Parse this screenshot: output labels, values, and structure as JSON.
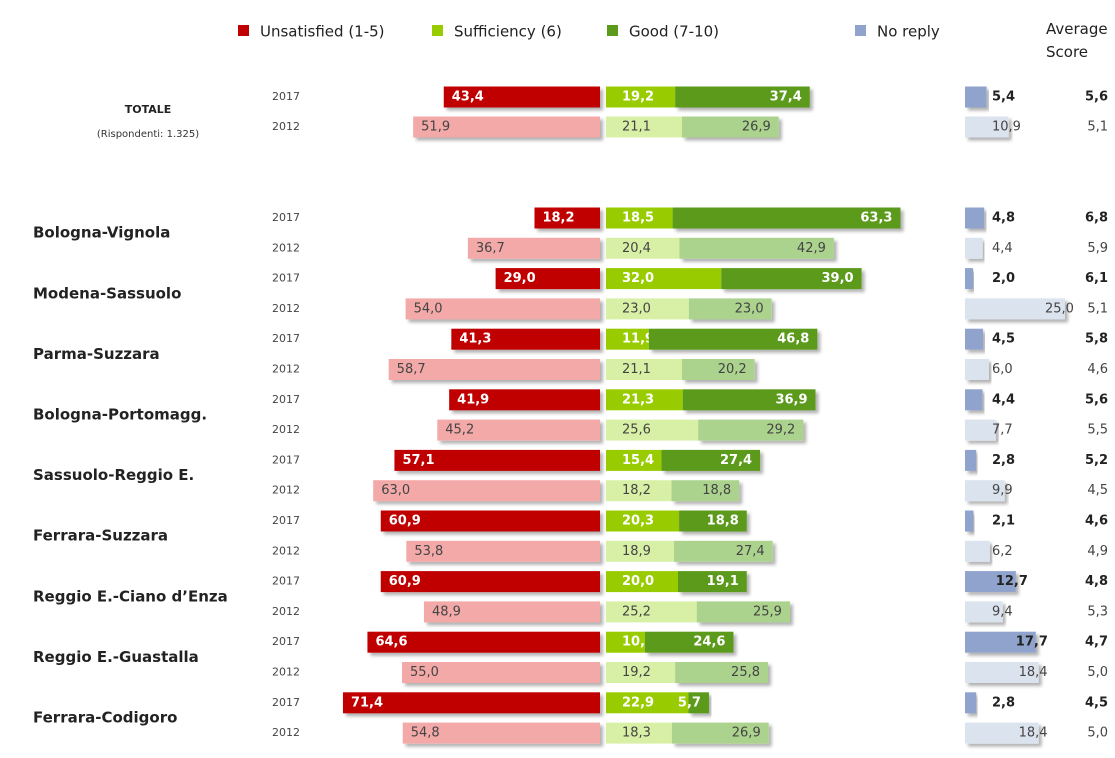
{
  "chart_data": {
    "type": "diverging_bar",
    "groups": [
      {
        "label": "TOTALE",
        "note": "(Rispondenti: 1.325)"
      },
      {
        "label": "Bologna-Vignola"
      },
      {
        "label": "Modena-Sassuolo"
      },
      {
        "label": "Parma-Suzzara"
      },
      {
        "label": "Bologna-Portomagg."
      },
      {
        "label": "Sassuolo-Reggio E."
      },
      {
        "label": "Ferrara-Suzzara"
      },
      {
        "label": "Reggio E.-Ciano d’Enza"
      },
      {
        "label": "Reggio E.-Guastalla"
      },
      {
        "label": "Ferrara-Codigoro"
      }
    ],
    "years": [
      "2017",
      "2012",
      "2017",
      "2012",
      "2017",
      "2012",
      "2017",
      "2012",
      "2017",
      "2012",
      "2017",
      "2012",
      "2017",
      "2012",
      "2017",
      "2012",
      "2017",
      "2012",
      "2017",
      "2012"
    ],
    "series": [
      {
        "name": "Unsatisfied (1-5)",
        "color": "#c00000",
        "light_color": "#f4a9a9",
        "side": "left",
        "values": [
          43.4,
          51.9,
          18.2,
          36.7,
          29.0,
          54.0,
          41.3,
          58.7,
          41.9,
          45.2,
          57.1,
          63.0,
          60.9,
          53.8,
          60.9,
          48.9,
          64.6,
          55.0,
          71.4,
          54.8
        ],
        "value_labels": [
          "43,4",
          "51,9",
          "18,2",
          "36,7",
          "29,0",
          "54,0",
          "41,3",
          "58,7",
          "41,9",
          "45,2",
          "57,1",
          "63,0",
          "60,9",
          "53,8",
          "60,9",
          "48,9",
          "64,6",
          "55,0",
          "71,4",
          "54,8"
        ]
      },
      {
        "name": "Sufficiency (6)",
        "color": "#99cc00",
        "light_color": "#d8f0a6",
        "side": "right",
        "values": [
          19.2,
          21.1,
          18.5,
          20.4,
          32.0,
          23.0,
          11.9,
          21.1,
          21.3,
          25.6,
          15.4,
          18.2,
          20.3,
          18.9,
          20.0,
          25.2,
          10.8,
          19.2,
          22.9,
          18.3
        ],
        "value_labels": [
          "19,2",
          "21,1",
          "18,5",
          "20,4",
          "32,0",
          "23,0",
          "11,9",
          "21,1",
          "21,3",
          "25,6",
          "15,4",
          "18,2",
          "20,3",
          "18,9",
          "20,0",
          "25,2",
          "10,8",
          "19,2",
          "22,9",
          "18,3"
        ]
      },
      {
        "name": "Good (7-10)",
        "color": "#5c9a1b",
        "light_color": "#acd38e",
        "side": "right",
        "values": [
          37.4,
          26.9,
          63.3,
          42.9,
          39.0,
          23.0,
          46.8,
          20.2,
          36.9,
          29.2,
          27.4,
          18.8,
          18.8,
          27.4,
          19.1,
          25.9,
          24.6,
          25.8,
          5.7,
          26.9
        ],
        "value_labels": [
          "37,4",
          "26,9",
          "63,3",
          "42,9",
          "39,0",
          "23,0",
          "46,8",
          "20,2",
          "36,9",
          "29,2",
          "27,4",
          "18,8",
          "18,8",
          "27,4",
          "19,1",
          "25,9",
          "24,6",
          "25,8",
          "5,7",
          "26,9"
        ]
      },
      {
        "name": "No reply",
        "color": "#8fa3cc",
        "light_color": "#dbe3ef",
        "side": "extra",
        "values": [
          5.4,
          10.9,
          4.8,
          4.4,
          2.0,
          25.0,
          4.5,
          6.0,
          4.4,
          7.7,
          2.8,
          9.9,
          2.1,
          6.2,
          12.7,
          9.4,
          17.7,
          18.4,
          2.8,
          18.4
        ],
        "value_labels": [
          "5,4",
          "10,9",
          "4,8",
          "4,4",
          "2,0",
          "25,0",
          "4,5",
          "6,0",
          "4,4",
          "7,7",
          "2,8",
          "9,9",
          "2,1",
          "6,2",
          "12,7",
          "9,4",
          "17,7",
          "18,4",
          "2,8",
          "18,4"
        ]
      }
    ],
    "average": {
      "name": "Average Score",
      "values": [
        5.6,
        5.1,
        6.8,
        5.9,
        6.1,
        5.1,
        5.8,
        4.6,
        5.6,
        5.5,
        5.2,
        4.5,
        4.6,
        4.9,
        4.8,
        5.3,
        4.7,
        5.0,
        4.5,
        5.0
      ],
      "value_labels": [
        "5,6",
        "5,1",
        "6,8",
        "5,9",
        "6,1",
        "5,1",
        "5,8",
        "4,6",
        "5,6",
        "5,5",
        "5,2",
        "4,5",
        "4,6",
        "4,9",
        "4,8",
        "5,3",
        "4,7",
        "5,0",
        "4,5",
        "5,0"
      ]
    }
  }
}
